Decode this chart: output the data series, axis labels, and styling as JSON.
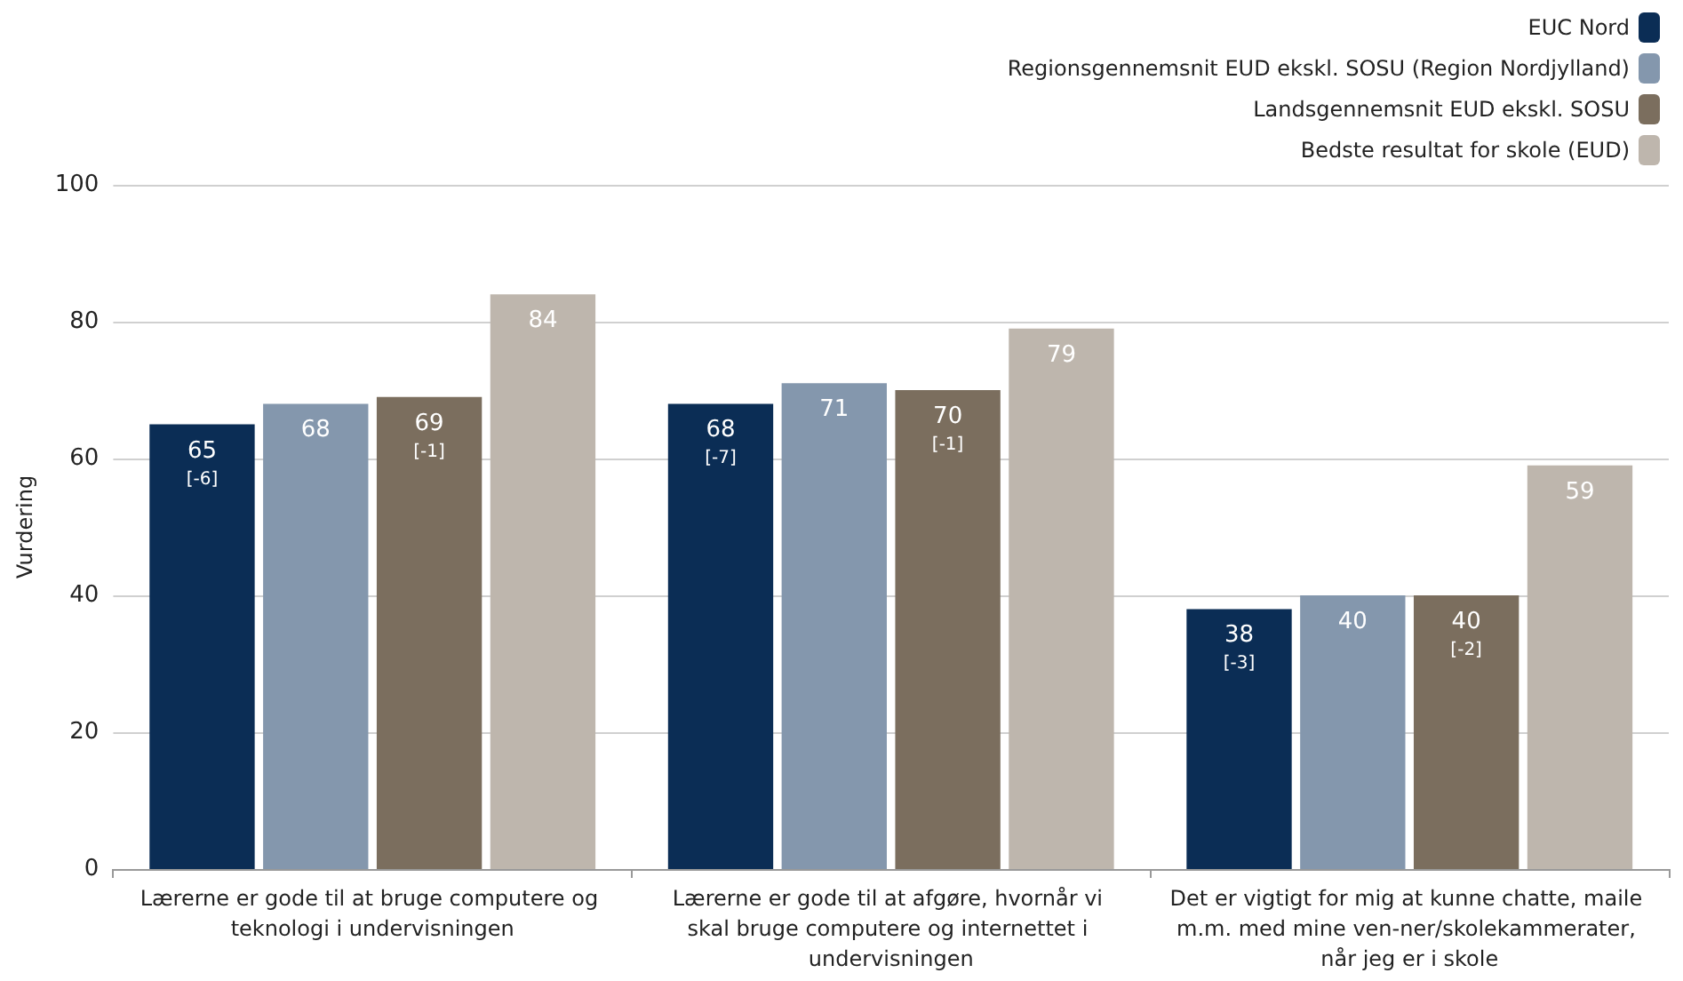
{
  "chart_data": {
    "type": "bar",
    "ylabel": "Vurdering",
    "categories": [
      "Lærerne er gode til at bruge computere og teknologi i undervisningen",
      "Lærerne er gode til at afgøre, hvornår vi skal bruge computere og internettet i undervisningen",
      "Det er vigtigt for mig at kunne chatte, maile m.m. med mine ven-ner/skolekammerater, når jeg er i skole"
    ],
    "series": [
      {
        "name": "EUC Nord",
        "color": "#0b2d55",
        "values": [
          65,
          68,
          38
        ],
        "value_labels": [
          "65\n[-6]",
          "68\n[-7]",
          "38\n[-3]"
        ]
      },
      {
        "name": "Regionsgennemsnit EUD ekskl. SOSU (Region Nordjylland)",
        "color": "#8497ad",
        "values": [
          68,
          71,
          40
        ],
        "value_labels": [
          "68",
          "71",
          "40"
        ]
      },
      {
        "name": "Landsgennemsnit EUD ekskl. SOSU",
        "color": "#7b6e5e",
        "values": [
          69,
          70,
          40
        ],
        "value_labels": [
          "69\n[-1]",
          "70\n[-1]",
          "40\n[-2]"
        ]
      },
      {
        "name": "Bedste resultat for skole (EUD)",
        "color": "#beb6ad",
        "values": [
          84,
          79,
          59
        ],
        "value_labels": [
          "84",
          "79",
          "59"
        ]
      }
    ],
    "ylim": [
      0,
      100
    ],
    "yticks": [
      0,
      20,
      40,
      60,
      80,
      100
    ],
    "grid": "y",
    "legend": "top right"
  }
}
